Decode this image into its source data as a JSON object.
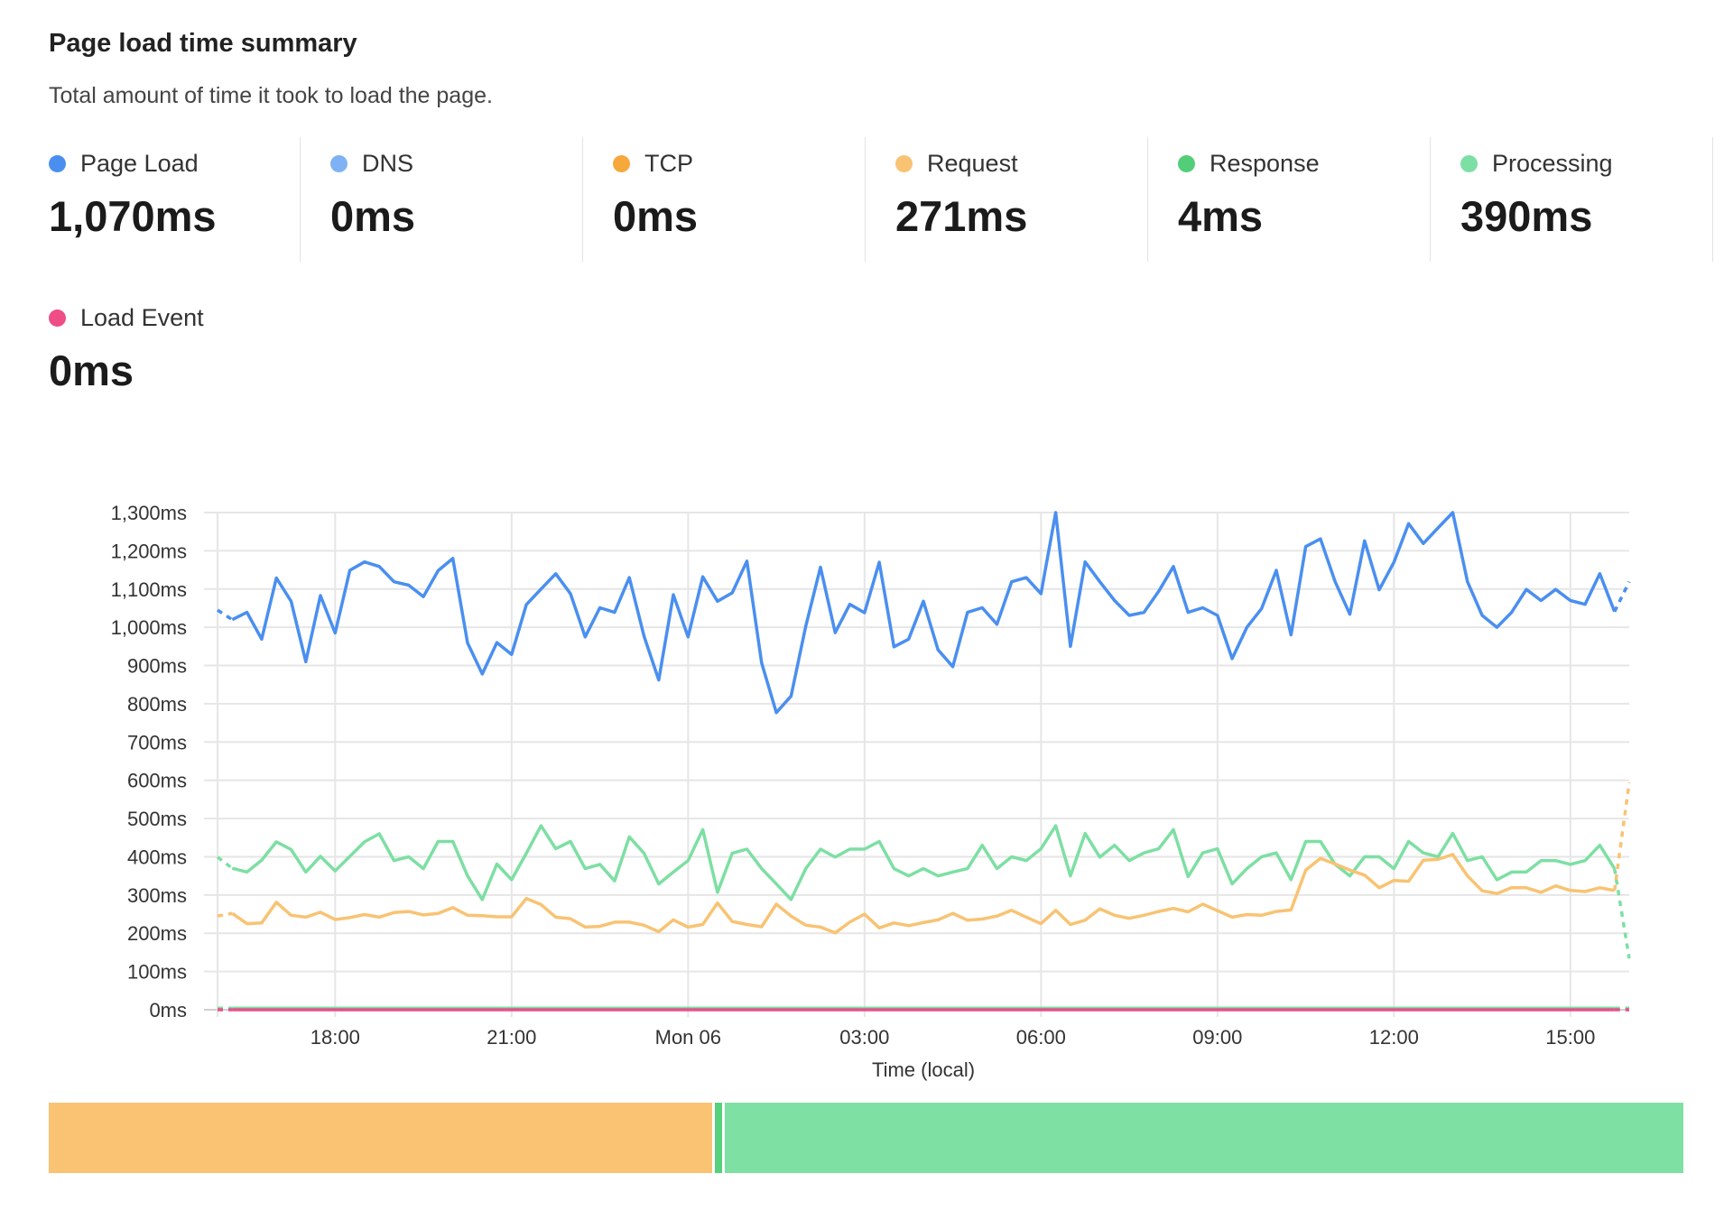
{
  "header": {
    "title": "Page load time summary",
    "subtitle": "Total amount of time it took to load the page."
  },
  "metrics": [
    {
      "label": "Page Load",
      "value": "1,070ms",
      "color": "#4a8ff0"
    },
    {
      "label": "DNS",
      "value": "0ms",
      "color": "#7fb2f4"
    },
    {
      "label": "TCP",
      "value": "0ms",
      "color": "#f6a83d"
    },
    {
      "label": "Request",
      "value": "271ms",
      "color": "#f8c373"
    },
    {
      "label": "Response",
      "value": "4ms",
      "color": "#52ce79"
    },
    {
      "label": "Processing",
      "value": "390ms",
      "color": "#7ddfa3"
    },
    {
      "label": "Load Event",
      "value": "0ms",
      "color": "#ee4d85"
    }
  ],
  "breakdown_bar": [
    {
      "label": "Request",
      "value": 271,
      "color": "#f9c373"
    },
    {
      "label": "Response",
      "value": 4,
      "color": "#56d07a"
    },
    {
      "label": "Processing",
      "value": 390,
      "color": "#7ee0a3"
    }
  ],
  "chart_data": {
    "type": "line",
    "xlabel": "Time (local)",
    "ylabel": "",
    "ylim": [
      0,
      1300
    ],
    "yticks": [
      "0ms",
      "100ms",
      "200ms",
      "300ms",
      "400ms",
      "500ms",
      "600ms",
      "700ms",
      "800ms",
      "900ms",
      "1,000ms",
      "1,100ms",
      "1,200ms",
      "1,300ms"
    ],
    "xticks": [
      {
        "label": "18:00",
        "at": "18:00"
      },
      {
        "label": "21:00",
        "at": "21:00"
      },
      {
        "label": "Mon 06",
        "at": "00:00"
      },
      {
        "label": "03:00",
        "at": "03:00"
      },
      {
        "label": "06:00",
        "at": "06:00"
      },
      {
        "label": "09:00",
        "at": "09:00"
      },
      {
        "label": "12:00",
        "at": "12:00"
      },
      {
        "label": "15:00",
        "at": "15:00"
      }
    ],
    "grid": true,
    "partial_first_and_last_segments_dashed": true,
    "x": [
      "16:00",
      "16:15",
      "16:30",
      "16:45",
      "17:00",
      "17:15",
      "17:30",
      "17:45",
      "18:00",
      "18:15",
      "18:30",
      "18:45",
      "19:00",
      "19:15",
      "19:30",
      "19:45",
      "20:00",
      "20:15",
      "20:30",
      "20:45",
      "21:00",
      "21:15",
      "21:30",
      "21:45",
      "22:00",
      "22:15",
      "22:30",
      "22:45",
      "23:00",
      "23:15",
      "23:30",
      "23:45",
      "00:00",
      "00:15",
      "00:30",
      "00:45",
      "01:00",
      "01:15",
      "01:30",
      "01:45",
      "02:00",
      "02:15",
      "02:30",
      "02:45",
      "03:00",
      "03:15",
      "03:30",
      "03:45",
      "04:00",
      "04:15",
      "04:30",
      "04:45",
      "05:00",
      "05:15",
      "05:30",
      "05:45",
      "06:00",
      "06:15",
      "06:30",
      "06:45",
      "07:00",
      "07:15",
      "07:30",
      "07:45",
      "08:00",
      "08:15",
      "08:30",
      "08:45",
      "09:00",
      "09:15",
      "09:30",
      "09:45",
      "10:00",
      "10:15",
      "10:30",
      "10:45",
      "11:00",
      "11:15",
      "11:30",
      "11:45",
      "12:00",
      "12:15",
      "12:30",
      "12:45",
      "13:00",
      "13:15",
      "13:30",
      "13:45",
      "14:00",
      "14:15",
      "14:30",
      "14:45",
      "15:00",
      "15:15",
      "15:30",
      "15:45",
      "16:00"
    ],
    "series": [
      {
        "key": "page-load",
        "color": "#4a8ff0",
        "values": [
          1045,
          1020,
          1039,
          969,
          1129,
          1068,
          910,
          1083,
          985,
          1149,
          1171,
          1159,
          1119,
          1110,
          1080,
          1148,
          1180,
          959,
          878,
          960,
          929,
          1059,
          1100,
          1140,
          1088,
          975,
          1051,
          1039,
          1130,
          977,
          862,
          1085,
          975,
          1132,
          1068,
          1090,
          1173,
          907,
          777,
          820,
          1003,
          1157,
          986,
          1060,
          1038,
          1170,
          949,
          969,
          1068,
          941,
          897,
          1039,
          1051,
          1008,
          1119,
          1130,
          1088,
          1300,
          950,
          1171,
          1119,
          1070,
          1031,
          1039,
          1094,
          1159,
          1039,
          1051,
          1031,
          918,
          1000,
          1049,
          1149,
          980,
          1211,
          1231,
          1119,
          1034,
          1226,
          1098,
          1170,
          1271,
          1219,
          1260,
          1300,
          1119,
          1031,
          1000,
          1039,
          1099,
          1070,
          1099,
          1070,
          1060,
          1140,
          1041,
          1119
        ]
      },
      {
        "key": "processing",
        "color": "#7ddfa3",
        "values": [
          399,
          370,
          360,
          391,
          439,
          419,
          360,
          401,
          363,
          401,
          439,
          460,
          390,
          400,
          369,
          440,
          440,
          350,
          288,
          381,
          340,
          409,
          481,
          421,
          440,
          369,
          380,
          337,
          452,
          409,
          329,
          360,
          390,
          471,
          307,
          409,
          420,
          369,
          329,
          288,
          369,
          420,
          399,
          420,
          420,
          440,
          369,
          350,
          369,
          350,
          360,
          369,
          430,
          369,
          400,
          390,
          421,
          481,
          350,
          461,
          399,
          430,
          390,
          410,
          421,
          471,
          348,
          410,
          421,
          329,
          369,
          400,
          410,
          340,
          440,
          440,
          380,
          350,
          400,
          400,
          369,
          440,
          410,
          400,
          461,
          390,
          400,
          340,
          360,
          360,
          390,
          390,
          380,
          390,
          430,
          369,
          134
        ]
      },
      {
        "key": "request",
        "color": "#f8c373",
        "values": [
          245,
          252,
          225,
          227,
          281,
          247,
          242,
          255,
          236,
          241,
          249,
          242,
          254,
          257,
          248,
          252,
          267,
          247,
          246,
          243,
          243,
          291,
          275,
          242,
          238,
          216,
          218,
          229,
          229,
          221,
          204,
          235,
          216,
          223,
          279,
          231,
          223,
          217,
          276,
          245,
          221,
          216,
          201,
          229,
          250,
          214,
          227,
          220,
          228,
          235,
          252,
          234,
          237,
          245,
          260,
          242,
          225,
          260,
          223,
          234,
          264,
          247,
          239,
          247,
          257,
          265,
          256,
          276,
          259,
          242,
          249,
          247,
          257,
          261,
          365,
          396,
          381,
          365,
          352,
          319,
          338,
          336,
          391,
          393,
          406,
          350,
          311,
          304,
          319,
          319,
          307,
          324,
          312,
          309,
          319,
          312,
          594
        ]
      },
      {
        "key": "response",
        "color": "#7ddfa3",
        "values": [
          4,
          4,
          4,
          4,
          4,
          4,
          4,
          4,
          4,
          4,
          4,
          4,
          4,
          4,
          4,
          4,
          4,
          4,
          4,
          4,
          4,
          4,
          4,
          4,
          4,
          4,
          4,
          4,
          4,
          4,
          4,
          4,
          4,
          4,
          4,
          4,
          4,
          4,
          4,
          4,
          4,
          4,
          4,
          4,
          4,
          4,
          4,
          4,
          4,
          4,
          4,
          4,
          4,
          4,
          4,
          4,
          4,
          4,
          4,
          4,
          4,
          4,
          4,
          4,
          4,
          4,
          4,
          4,
          4,
          4,
          4,
          4,
          4,
          4,
          4,
          4,
          4,
          4,
          4,
          4,
          4,
          4,
          4,
          4,
          4,
          4,
          4,
          4,
          4,
          4,
          4,
          4,
          4,
          4,
          4,
          4,
          4
        ]
      },
      {
        "key": "load-event",
        "color": "#e2538a",
        "values": [
          0,
          0,
          0,
          0,
          0,
          0,
          0,
          0,
          0,
          0,
          0,
          0,
          0,
          0,
          0,
          0,
          0,
          0,
          0,
          0,
          0,
          0,
          0,
          0,
          0,
          0,
          0,
          0,
          0,
          0,
          0,
          0,
          0,
          0,
          0,
          0,
          0,
          0,
          0,
          0,
          0,
          0,
          0,
          0,
          0,
          0,
          0,
          0,
          0,
          0,
          0,
          0,
          0,
          0,
          0,
          0,
          0,
          0,
          0,
          0,
          0,
          0,
          0,
          0,
          0,
          0,
          0,
          0,
          0,
          0,
          0,
          0,
          0,
          0,
          0,
          0,
          0,
          0,
          0,
          0,
          0,
          0,
          0,
          0,
          0,
          0,
          0,
          0,
          0,
          0,
          0,
          0,
          0,
          0,
          0,
          0,
          0
        ]
      }
    ]
  }
}
